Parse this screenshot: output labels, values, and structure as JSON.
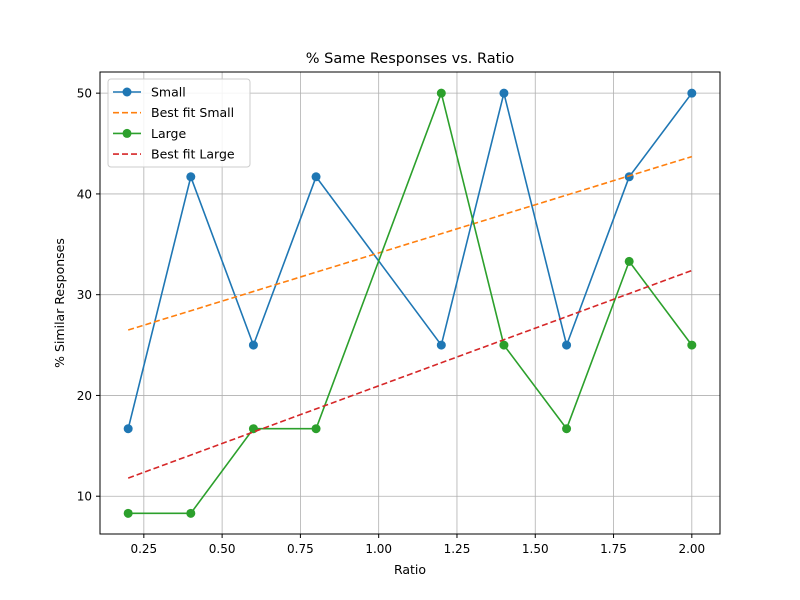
{
  "chart_data": {
    "type": "line",
    "title": "% Same Responses vs. Ratio",
    "xlabel": "Ratio",
    "ylabel": "% Similar Responses",
    "xlim": [
      0.11,
      2.09
    ],
    "ylim": [
      6.25,
      52.1
    ],
    "x_ticks": [
      "0.25",
      "0.50",
      "0.75",
      "1.00",
      "1.25",
      "1.50",
      "1.75",
      "2.00"
    ],
    "y_ticks": [
      "10",
      "20",
      "30",
      "40",
      "50"
    ],
    "grid": true,
    "legend_position": "upper-left",
    "series": [
      {
        "name": "Small",
        "color": "#1f77b4",
        "style": "solid-marker",
        "x": [
          0.2,
          0.4,
          0.6,
          0.8,
          1.2,
          1.4,
          1.6,
          1.8,
          2.0
        ],
        "y": [
          16.7,
          41.7,
          25.0,
          41.7,
          25.0,
          50.0,
          25.0,
          41.7,
          50.0
        ]
      },
      {
        "name": "Best fit Small",
        "color": "#ff7f0e",
        "style": "dashed",
        "x": [
          0.2,
          2.0
        ],
        "y": [
          26.5,
          43.7
        ]
      },
      {
        "name": "Large",
        "color": "#2ca02c",
        "style": "solid-marker",
        "x": [
          0.2,
          0.4,
          0.6,
          0.8,
          1.2,
          1.4,
          1.6,
          1.8,
          2.0
        ],
        "y": [
          8.3,
          8.3,
          16.7,
          16.7,
          50.0,
          25.0,
          16.7,
          33.3,
          25.0
        ]
      },
      {
        "name": "Best fit Large",
        "color": "#d62728",
        "style": "dashed",
        "x": [
          0.2,
          2.0
        ],
        "y": [
          11.8,
          32.4
        ]
      }
    ]
  }
}
